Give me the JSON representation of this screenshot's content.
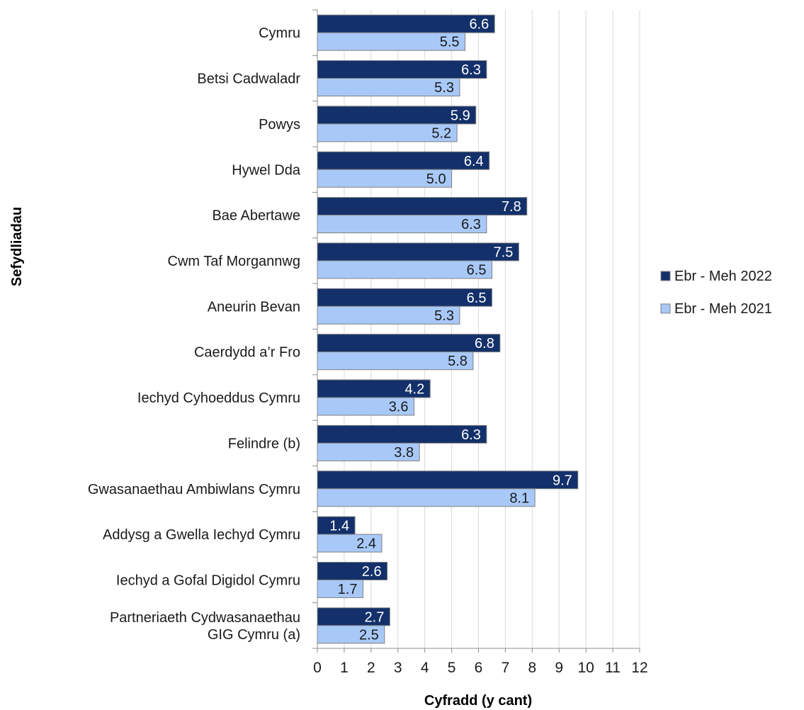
{
  "chart_data": {
    "type": "bar",
    "orientation": "horizontal",
    "categories": [
      [
        "Cymru"
      ],
      [
        "Betsi Cadwaladr"
      ],
      [
        "Powys"
      ],
      [
        "Hywel Dda"
      ],
      [
        "Bae Abertawe"
      ],
      [
        "Cwm Taf Morgannwg"
      ],
      [
        "Aneurin Bevan"
      ],
      [
        "Caerdydd a’r Fro"
      ],
      [
        "Iechyd Cyhoeddus Cymru"
      ],
      [
        "Felindre (b)"
      ],
      [
        "Gwasanaethau Ambiwlans Cymru"
      ],
      [
        "Addysg a Gwella Iechyd Cymru"
      ],
      [
        "Iechyd a Gofal Digidol Cymru"
      ],
      [
        "Partneriaeth Cydwasanaethau",
        "GIG Cymru (a)"
      ]
    ],
    "series": [
      {
        "name": "Ebr - Meh 2022",
        "color": "#13306a",
        "label_color": "#ffffff",
        "values": [
          6.6,
          6.3,
          5.9,
          6.4,
          7.8,
          7.5,
          6.5,
          6.8,
          4.2,
          6.3,
          9.7,
          1.4,
          2.6,
          2.7
        ],
        "labels": [
          "6.6",
          "6.3",
          "5.9",
          "6.4",
          "7.8",
          "7.5",
          "6.5",
          "6.8",
          "4.2",
          "6.3",
          "9.7",
          "1.4",
          "2.6",
          "2.7"
        ]
      },
      {
        "name": "Ebr - Meh 2021",
        "color": "#a8c9f8",
        "label_color": "#1a1a1a",
        "values": [
          5.5,
          5.3,
          5.2,
          5.0,
          6.3,
          6.5,
          5.3,
          5.8,
          3.6,
          3.8,
          8.1,
          2.4,
          1.7,
          2.5
        ],
        "labels": [
          "5.5",
          "5.3",
          "5.2",
          "5.0",
          "6.3",
          "6.5",
          "5.3",
          "5.8",
          "3.6",
          "3.8",
          "8.1",
          "2.4",
          "1.7",
          "2.5"
        ]
      }
    ],
    "xlabel": "Cyfradd (y cant)",
    "ylabel": "Sefydliadau",
    "xlim": [
      0,
      12
    ],
    "xticks": [
      "0",
      "1",
      "2",
      "3",
      "4",
      "5",
      "6",
      "7",
      "8",
      "9",
      "10",
      "11",
      "12"
    ],
    "grid": "vertical",
    "legend_position": "right",
    "colors": {
      "grid": "#d9d9d9",
      "axis": "#8c8c8c",
      "bar_outline": "#7f7f7f"
    }
  }
}
